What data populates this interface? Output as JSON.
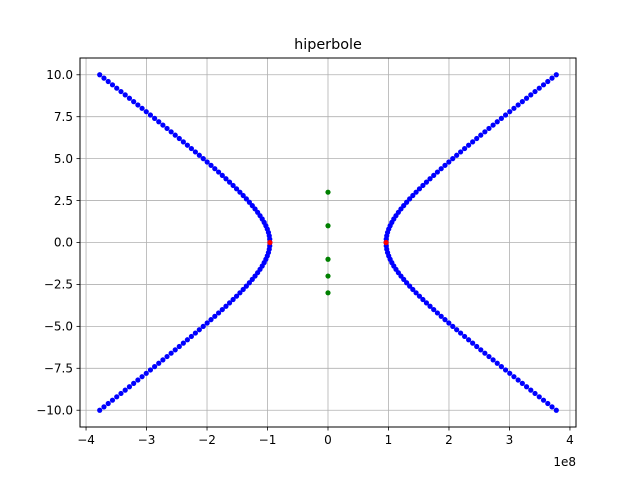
{
  "chart_data": {
    "type": "scatter",
    "title": "hiperbole",
    "xlabel": "",
    "ylabel": "",
    "x_offset_label": "1e8",
    "x_unit_scale": 100000000,
    "xlim": [
      -410000000.0,
      410000000.0
    ],
    "ylim": [
      -11.0,
      11.0
    ],
    "xticks": [
      -400000000.0,
      -300000000.0,
      -200000000.0,
      -100000000.0,
      0,
      100000000.0,
      200000000.0,
      300000000.0,
      400000000.0
    ],
    "xtick_labels": [
      "−4",
      "−3",
      "−2",
      "−1",
      "0",
      "1",
      "2",
      "3",
      "4"
    ],
    "yticks": [
      -10,
      -7.5,
      -5,
      -2.5,
      0,
      2.5,
      5,
      7.5,
      10
    ],
    "ytick_labels": [
      "−10.0",
      "−7.5",
      "−5.0",
      "−2.5",
      "0.0",
      "2.5",
      "5.0",
      "7.5",
      "10.0"
    ],
    "grid": true,
    "hyperbola_a": 96000000,
    "hyperbola_b": 2.63,
    "series": [
      {
        "color": "#0000ff",
        "y": [
          -10.0,
          -9.8,
          -9.6,
          -9.4,
          -9.2,
          -9.0,
          -8.8,
          -8.6,
          -8.4,
          -8.2,
          -8.0,
          -7.8,
          -7.6,
          -7.4,
          -7.2,
          -7.0,
          -6.8,
          -6.6,
          -6.4,
          -6.2,
          -6.0,
          -5.8,
          -5.6,
          -5.4,
          -5.2,
          -5.0,
          -4.8,
          -4.6,
          -4.4,
          -4.2,
          -4.0,
          -3.8,
          -3.6,
          -3.4,
          -3.2,
          -3.0,
          -2.8,
          -2.6,
          -2.4,
          -2.2,
          -2.0,
          -1.8,
          -1.6,
          -1.4,
          -1.2,
          -1.0,
          -0.8,
          -0.6,
          -0.4,
          -0.2,
          0.0,
          0.2,
          0.4,
          0.6,
          0.8,
          1.0,
          1.2,
          1.4,
          1.6,
          1.8,
          2.0,
          2.2,
          2.4,
          2.6,
          2.8,
          3.0,
          3.2,
          3.4,
          3.6,
          3.8,
          4.0,
          4.2,
          4.4,
          4.6,
          4.8,
          5.0,
          5.2,
          5.4,
          5.6,
          5.8,
          6.0,
          6.2,
          6.4,
          6.6,
          6.8,
          7.0,
          7.2,
          7.4,
          7.6,
          7.8,
          8.0,
          8.2,
          8.4,
          8.6,
          8.8,
          9.0,
          9.2,
          9.4,
          9.6,
          9.8,
          10.0
        ]
      },
      {
        "color": "#ff0000",
        "points": [
          [
            -96000000,
            0
          ],
          [
            96000000,
            0
          ]
        ]
      },
      {
        "color": "#008000",
        "points": [
          [
            0,
            3.0
          ],
          [
            0,
            1.0
          ],
          [
            0,
            -1.0
          ],
          [
            0,
            -2.0
          ],
          [
            0,
            -3.0
          ]
        ]
      }
    ]
  }
}
